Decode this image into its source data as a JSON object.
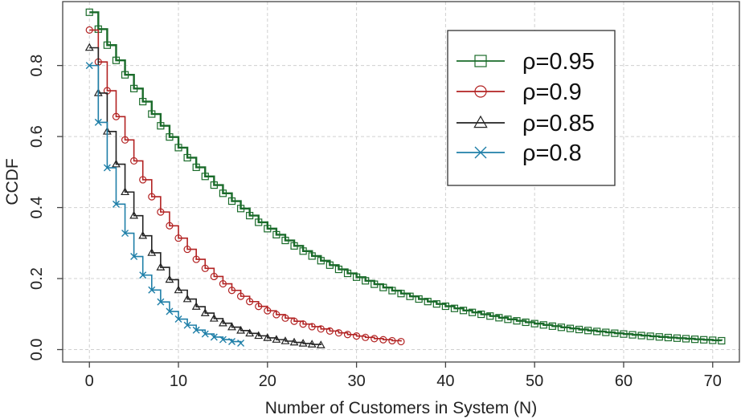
{
  "chart_data": {
    "type": "line",
    "style": "step-post",
    "xlabel": "Number of Customers in System (N)",
    "ylabel": "CCDF",
    "xlim": [
      -3,
      73
    ],
    "ylim": [
      -0.035,
      0.98
    ],
    "xticks": [
      0,
      10,
      20,
      30,
      40,
      50,
      60,
      70
    ],
    "yticks": [
      0.0,
      0.2,
      0.4,
      0.6,
      0.8
    ],
    "ytick_labels": [
      "0.0",
      "0.2",
      "0.4",
      "0.6",
      "0.8"
    ],
    "grid": true,
    "legend_position": "top-right",
    "series": [
      {
        "name": "ρ=0.95",
        "rho": 0.95,
        "n_max": 71,
        "color": "#1a6b2a",
        "marker": "square"
      },
      {
        "name": "ρ=0.9",
        "rho": 0.9,
        "n_max": 35,
        "color": "#b22222",
        "marker": "circle"
      },
      {
        "name": "ρ=0.85",
        "rho": 0.85,
        "n_max": 26,
        "color": "#222222",
        "marker": "triangle"
      },
      {
        "name": "ρ=0.8",
        "rho": 0.8,
        "n_max": 17,
        "color": "#1f7fa8",
        "marker": "x"
      }
    ]
  }
}
